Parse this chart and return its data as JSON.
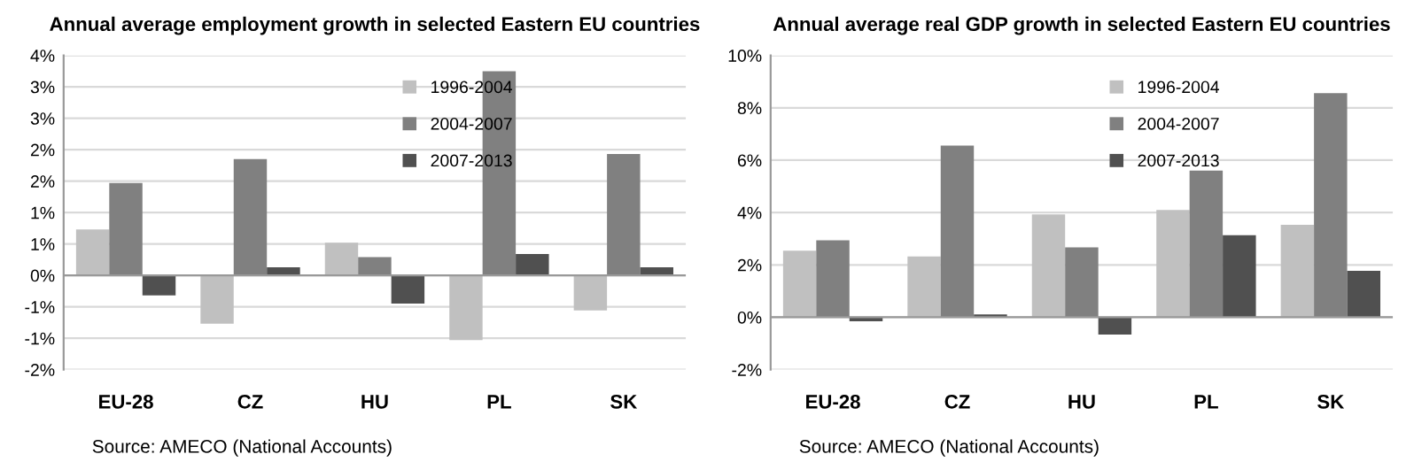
{
  "chart_data": [
    {
      "type": "bar",
      "title": "Annual average employment growth in selected Eastern EU countries",
      "categories": [
        "EU-28",
        "CZ",
        "HU",
        "PL",
        "SK"
      ],
      "series": [
        {
          "name": "1996-2004",
          "color": "#c0c0c0",
          "values": [
            0.73,
            -0.77,
            0.52,
            -1.03,
            -0.56
          ]
        },
        {
          "name": "2004-2007",
          "color": "#808080",
          "values": [
            1.47,
            1.85,
            0.29,
            3.25,
            1.93
          ]
        },
        {
          "name": "2007-2013",
          "color": "#505050",
          "values": [
            -0.32,
            0.13,
            -0.45,
            0.34,
            0.13
          ]
        }
      ],
      "ylim": [
        -1.5,
        3.5
      ],
      "yticks": [
        {
          "value": -1.5,
          "label": "-2%"
        },
        {
          "value": -1,
          "label": "-1%"
        },
        {
          "value": -0.5,
          "label": "-1%"
        },
        {
          "value": 0,
          "label": "0%"
        },
        {
          "value": 0.5,
          "label": "1%"
        },
        {
          "value": 1,
          "label": "1%"
        },
        {
          "value": 1.5,
          "label": "2%"
        },
        {
          "value": 2,
          "label": "2%"
        },
        {
          "value": 2.5,
          "label": "3%"
        },
        {
          "value": 3,
          "label": "3%"
        },
        {
          "value": 3.5,
          "label": "4%"
        }
      ],
      "grid": "y",
      "legend": "top",
      "annotations": [
        "Source: AMECO (National Accounts)"
      ]
    },
    {
      "type": "bar",
      "title": "Annual average real GDP growth in selected Eastern EU countries",
      "categories": [
        "EU-28",
        "CZ",
        "HU",
        "PL",
        "SK"
      ],
      "series": [
        {
          "name": "1996-2004",
          "color": "#c0c0c0",
          "values": [
            2.54,
            2.32,
            3.93,
            4.1,
            3.53
          ]
        },
        {
          "name": "2004-2007",
          "color": "#808080",
          "values": [
            2.94,
            6.56,
            2.67,
            5.6,
            8.56
          ]
        },
        {
          "name": "2007-2013",
          "color": "#505050",
          "values": [
            -0.15,
            0.11,
            -0.66,
            3.13,
            1.77
          ]
        }
      ],
      "ylim": [
        -2,
        10
      ],
      "yticks": [
        {
          "value": -2,
          "label": "-2%"
        },
        {
          "value": 0,
          "label": "0%"
        },
        {
          "value": 2,
          "label": "2%"
        },
        {
          "value": 4,
          "label": "4%"
        },
        {
          "value": 6,
          "label": "6%"
        },
        {
          "value": 8,
          "label": "8%"
        },
        {
          "value": 10,
          "label": "10%"
        }
      ],
      "grid": "y",
      "legend": "top",
      "annotations": [
        "Source: AMECO (National Accounts)"
      ]
    }
  ]
}
